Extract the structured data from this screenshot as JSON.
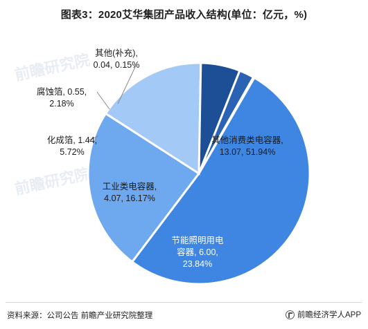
{
  "title": "图表3：2020艾华集团产品收入结构(单位：亿元，%)",
  "source": "资料来源：公司公告 前瞻产业研究院整理",
  "brand": "前瞻经济学人APP",
  "watermark": "前瞻研究院",
  "chart_data": {
    "type": "pie",
    "unit": "亿元",
    "slices": [
      {
        "label": "其他消费类电容器",
        "value": 13.07,
        "percent": 51.94,
        "color": "#3f86e2",
        "label_lines": [
          "其他消费类电容器,",
          "13.07, 51.94%"
        ],
        "label_color": "#1a1a1a",
        "inside": true
      },
      {
        "label": "节能照明用电容器",
        "value": 6.0,
        "percent": 23.84,
        "color": "#6ea8ef",
        "label_lines": [
          "节能照明用电",
          "容器, 6.00,",
          "23.84%"
        ],
        "label_color": "#ffffff",
        "inside": true
      },
      {
        "label": "工业类电容器",
        "value": 4.07,
        "percent": 16.17,
        "color": "#a3c9f6",
        "label_lines": [
          "工业类电容器,",
          "4.07, 16.17%"
        ],
        "label_color": "#1a1a1a",
        "inside": true
      },
      {
        "label": "化成箔",
        "value": 1.44,
        "percent": 5.72,
        "color": "#1d4f97",
        "label_lines": [
          "化成箔, 1.44,",
          "5.72%"
        ],
        "label_color": "#1a1a1a",
        "inside": false
      },
      {
        "label": "腐蚀箔",
        "value": 0.55,
        "percent": 2.18,
        "color": "#2a63b3",
        "label_lines": [
          "腐蚀箔, 0.55,",
          "2.18%"
        ],
        "label_color": "#1a1a1a",
        "inside": false
      },
      {
        "label": "其他(补充)",
        "value": 0.04,
        "percent": 0.15,
        "color": "#3f86e2",
        "label_lines": [
          "其他(补充),",
          "0.04, 0.15%"
        ],
        "label_color": "#1a1a1a",
        "inside": false
      }
    ]
  }
}
